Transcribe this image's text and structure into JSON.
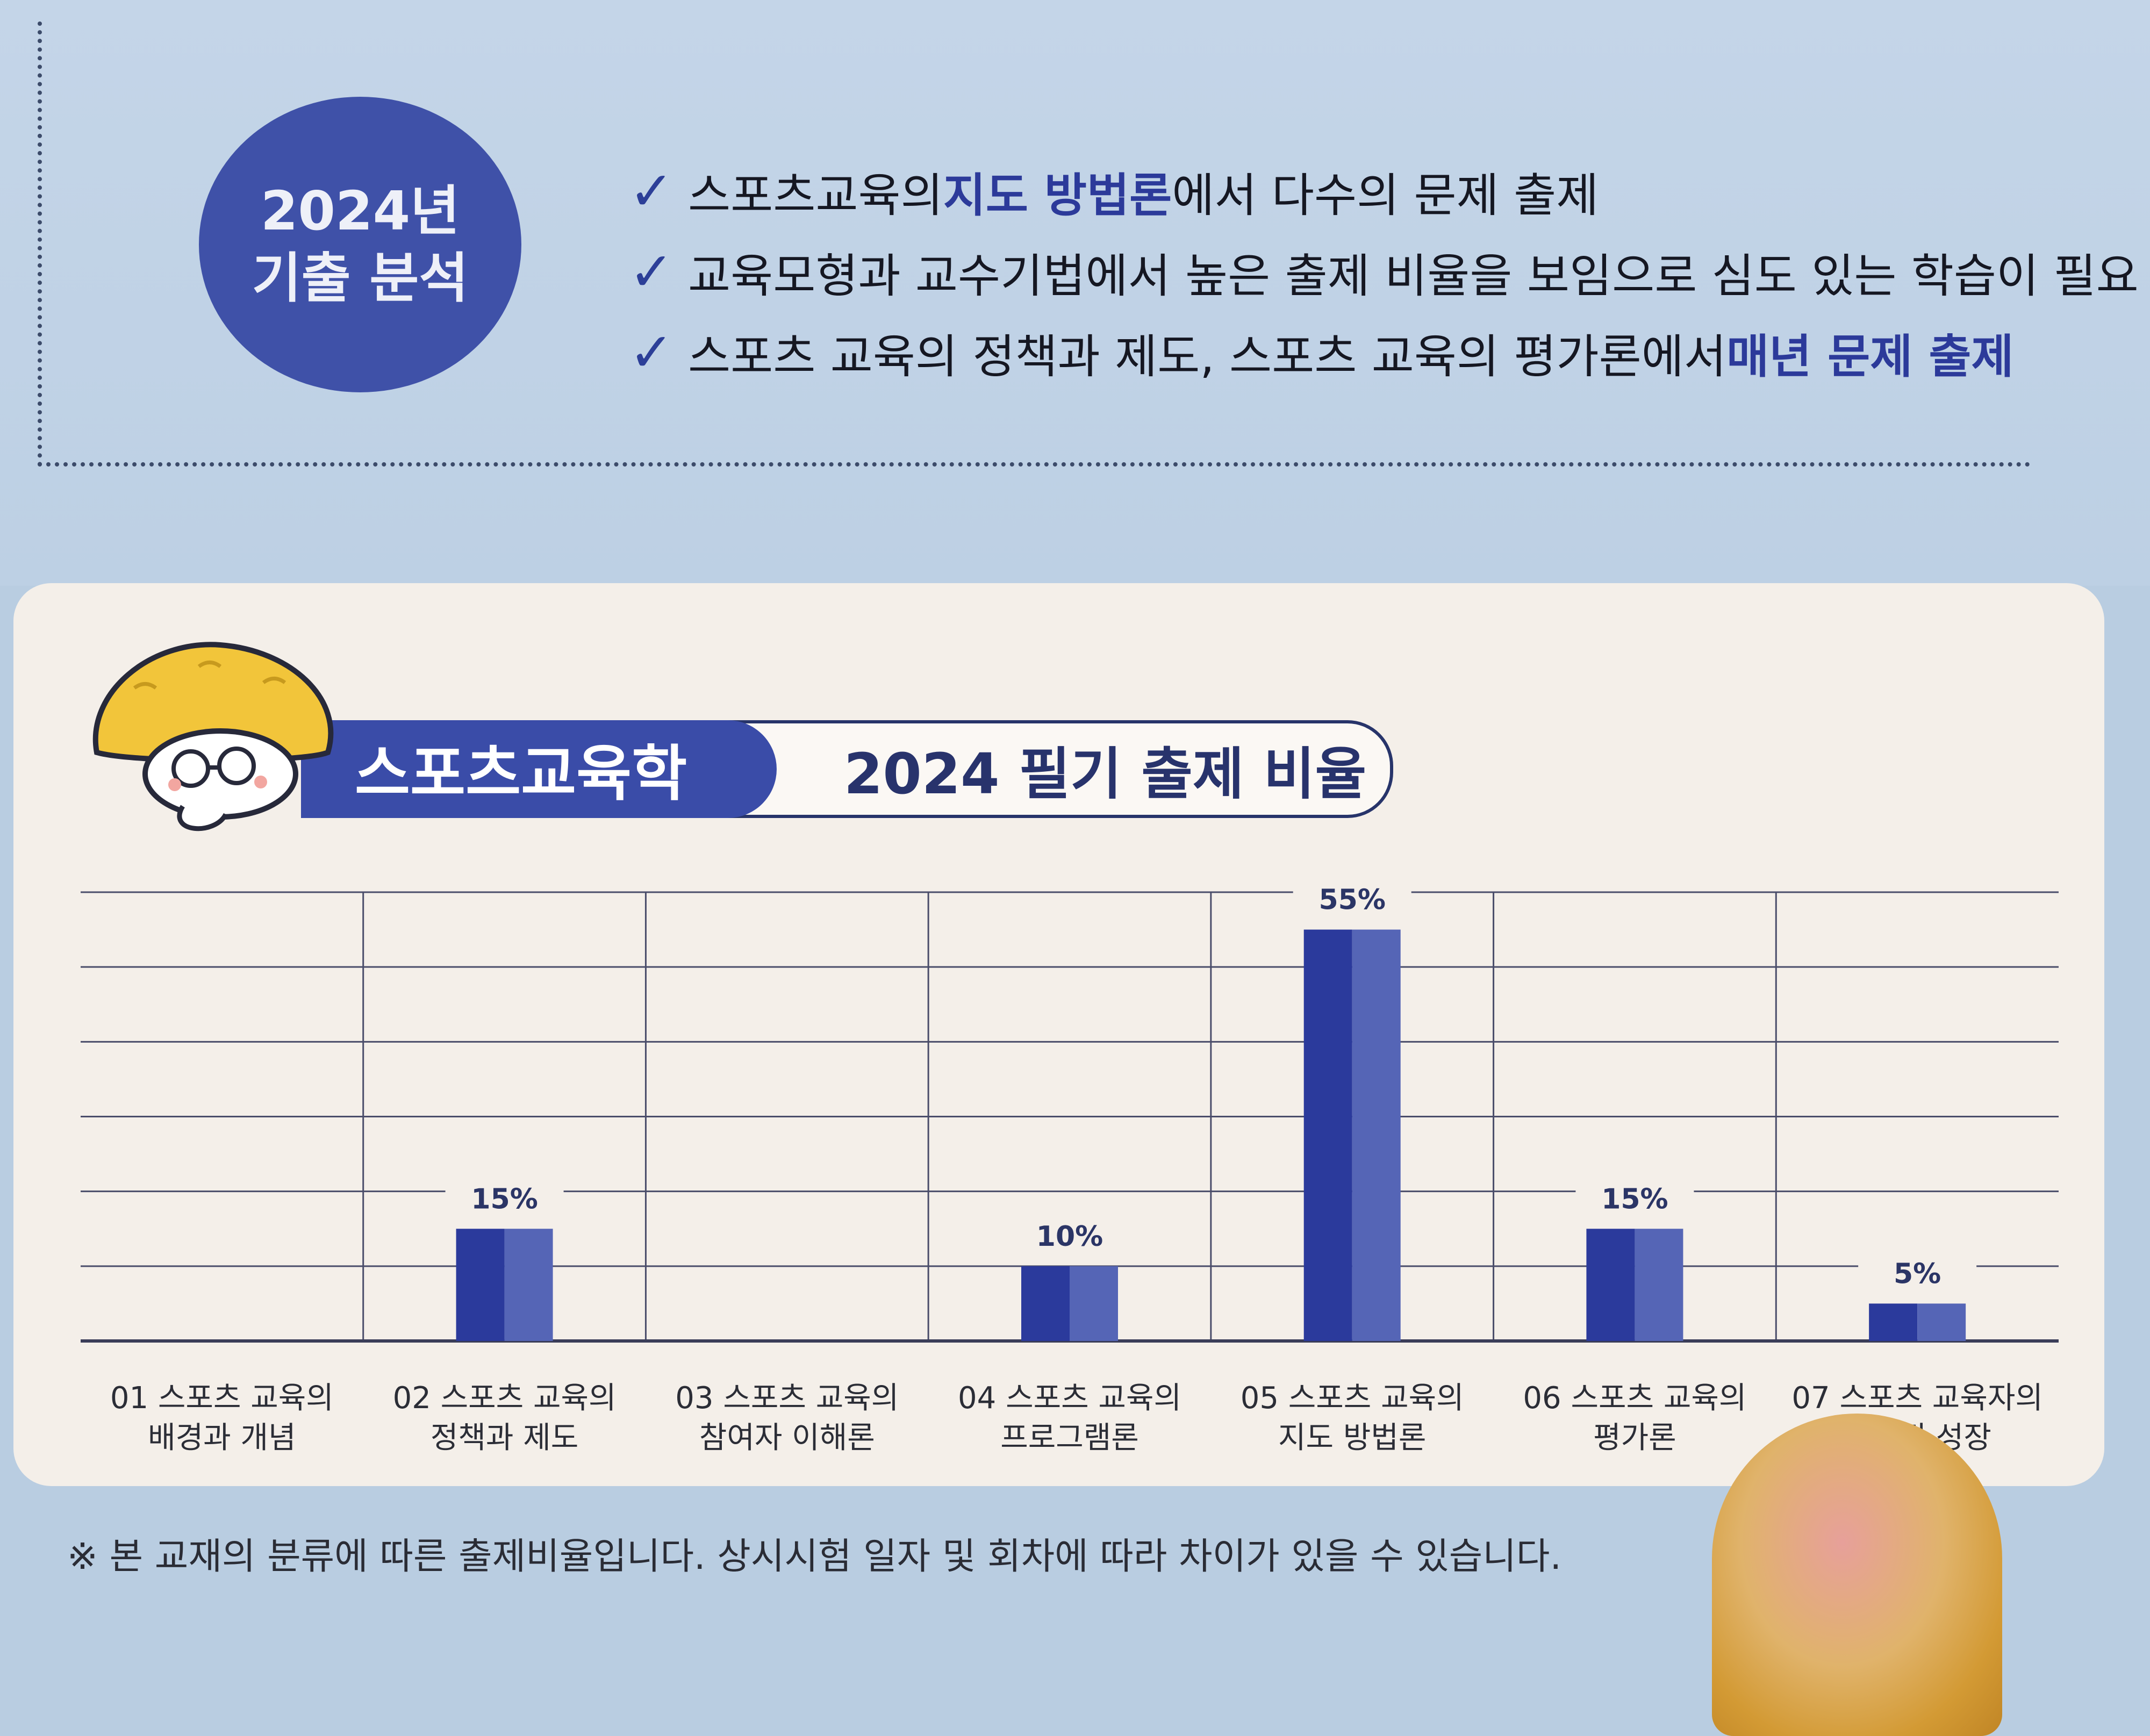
{
  "analysis": {
    "badge_line1": "2024년",
    "badge_line2": "기출 분석",
    "points": [
      {
        "pre": "스포츠교육의 ",
        "highlight": "지도 방법론",
        "post": "에서 다수의 문제 출제"
      },
      {
        "pre": "교육모형과 교수기법에서 높은 출제 비율을 보임으로 심도 있는 학습이 필요",
        "highlight": "",
        "post": ""
      },
      {
        "pre": "스포츠 교육의 정책과 제도, 스포츠 교육의 평가론에서 ",
        "highlight": "매년 문제 출제",
        "post": ""
      }
    ]
  },
  "header": {
    "subject": "스포츠교육학",
    "title": "2024 필기 출제 비율"
  },
  "chart_data": {
    "type": "bar",
    "categories": [
      [
        "01 스포츠 교육의",
        "배경과 개념"
      ],
      [
        "02 스포츠 교육의",
        "정책과 제도"
      ],
      [
        "03 스포츠 교육의",
        "참여자 이해론"
      ],
      [
        "04 스포츠 교육의",
        "프로그램론"
      ],
      [
        "05 스포츠 교육의",
        "지도 방법론"
      ],
      [
        "06 스포츠 교육의",
        "평가론"
      ],
      [
        "07 스포츠 교육자의",
        "전문적 성장"
      ]
    ],
    "values": [
      0,
      15,
      0,
      10,
      55,
      15,
      5
    ],
    "value_labels": [
      "",
      "15%",
      "",
      "10%",
      "55%",
      "15%",
      "5%"
    ],
    "ylim": [
      0,
      60
    ],
    "grid": true,
    "colors": {
      "bar_dark": "#2b3a9c",
      "bar_light": "#5565b6",
      "grid": "#4a4d6a"
    }
  },
  "footnote": "※ 본 교재의 분류에 따른 출제비율입니다. 상시시험 일자 및 회차에 따라 차이가 있을 수 있습니다."
}
